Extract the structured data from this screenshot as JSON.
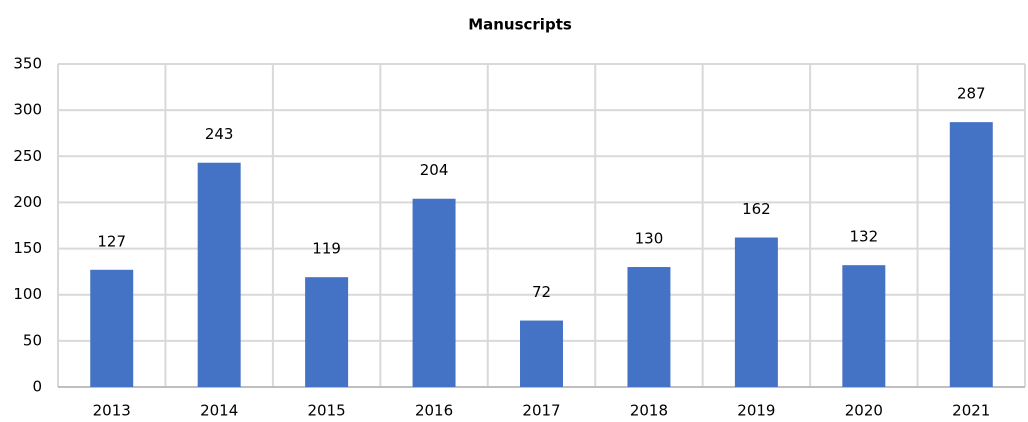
{
  "chart_data": {
    "type": "bar",
    "title": "Manuscripts",
    "categories": [
      "2013",
      "2014",
      "2015",
      "2016",
      "2017",
      "2018",
      "2019",
      "2020",
      "2021"
    ],
    "values": [
      127,
      243,
      119,
      204,
      72,
      130,
      162,
      132,
      287
    ],
    "color": "#4472c4",
    "ylim": [
      0,
      350
    ],
    "yticks": [
      0,
      50,
      100,
      150,
      200,
      250,
      300,
      350
    ],
    "grid": true
  }
}
